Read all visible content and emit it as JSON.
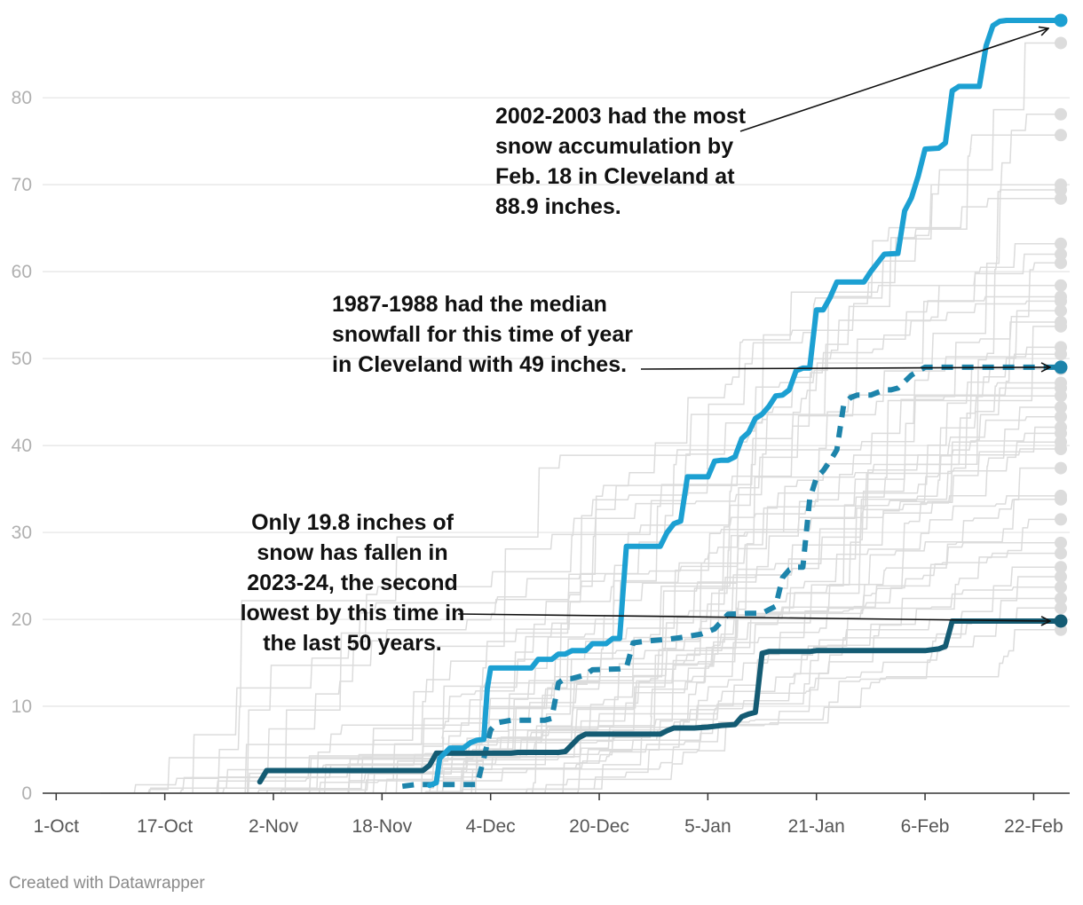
{
  "chart_data": {
    "type": "line",
    "title": "",
    "xlabel": "",
    "ylabel": "",
    "x_unit": "days since 1-Oct",
    "xlim": [
      -2,
      148
    ],
    "ylim": [
      0,
      89
    ],
    "y_ticks": [
      0,
      10,
      20,
      30,
      40,
      50,
      60,
      70,
      80
    ],
    "x_ticks": [
      {
        "label": "1-Oct",
        "day": 0
      },
      {
        "label": "17-Oct",
        "day": 16
      },
      {
        "label": "2-Nov",
        "day": 32
      },
      {
        "label": "18-Nov",
        "day": 48
      },
      {
        "label": "4-Dec",
        "day": 64
      },
      {
        "label": "20-Dec",
        "day": 80
      },
      {
        "label": "5-Jan",
        "day": 96
      },
      {
        "label": "21-Jan",
        "day": 112
      },
      {
        "label": "6-Feb",
        "day": 128
      },
      {
        "label": "22-Feb",
        "day": 144
      }
    ],
    "end_day": 148,
    "series": [
      {
        "name": "2002-2003",
        "style": "solid",
        "color": "#1ca0d2",
        "end_value": 88.9,
        "points": [
          [
            55,
            0.9
          ],
          [
            56,
            1.2
          ],
          [
            56.5,
            4
          ],
          [
            58,
            5.2
          ],
          [
            60,
            5.2
          ],
          [
            61,
            5.8
          ],
          [
            62,
            6.1
          ],
          [
            63,
            6.2
          ],
          [
            63.5,
            12
          ],
          [
            64,
            14.4
          ],
          [
            70,
            14.4
          ],
          [
            71,
            15.4
          ],
          [
            73,
            15.4
          ],
          [
            74,
            16
          ],
          [
            75,
            16
          ],
          [
            76,
            16.4
          ],
          [
            78,
            16.4
          ],
          [
            79,
            17.2
          ],
          [
            81,
            17.2
          ],
          [
            82,
            17.8
          ],
          [
            83,
            17.8
          ],
          [
            84,
            28.4
          ],
          [
            89,
            28.4
          ],
          [
            90,
            30
          ],
          [
            91,
            31
          ],
          [
            92,
            31.3
          ],
          [
            93,
            36.4
          ],
          [
            96,
            36.4
          ],
          [
            97,
            38.2
          ],
          [
            98,
            38.3
          ],
          [
            99,
            38.3
          ],
          [
            100,
            38.7
          ],
          [
            101,
            40.8
          ],
          [
            102,
            41.5
          ],
          [
            103,
            43.1
          ],
          [
            104,
            43.6
          ],
          [
            105,
            44.5
          ],
          [
            106,
            45.7
          ],
          [
            107,
            45.8
          ],
          [
            108,
            46.4
          ],
          [
            109,
            48.6
          ],
          [
            110,
            48.9
          ],
          [
            111,
            48.9
          ],
          [
            112,
            55.6
          ],
          [
            113,
            55.6
          ],
          [
            114,
            57
          ],
          [
            115,
            58.8
          ],
          [
            119,
            58.8
          ],
          [
            120,
            60
          ],
          [
            121,
            61
          ],
          [
            122,
            62
          ],
          [
            124,
            62.1
          ],
          [
            125,
            67
          ],
          [
            126,
            68.5
          ],
          [
            127,
            71
          ],
          [
            128,
            74.1
          ],
          [
            130,
            74.2
          ],
          [
            131,
            74.8
          ],
          [
            132,
            80.8
          ],
          [
            133,
            81.3
          ],
          [
            136,
            81.3
          ],
          [
            137,
            86
          ],
          [
            138,
            88.3
          ],
          [
            139,
            88.8
          ],
          [
            140,
            88.9
          ],
          [
            148,
            88.9
          ]
        ]
      },
      {
        "name": "1987-1988",
        "style": "dashed",
        "color": "#1d84ab",
        "end_value": 49,
        "points": [
          [
            51,
            0.8
          ],
          [
            53,
            1
          ],
          [
            59,
            1
          ],
          [
            60,
            1
          ],
          [
            61,
            1
          ],
          [
            62,
            1
          ],
          [
            63,
            4
          ],
          [
            64,
            7.3
          ],
          [
            65,
            8.1
          ],
          [
            67,
            8.4
          ],
          [
            72,
            8.4
          ],
          [
            73,
            8.6
          ],
          [
            74,
            12.7
          ],
          [
            75,
            13.2
          ],
          [
            76,
            13.2
          ],
          [
            77,
            13.4
          ],
          [
            78,
            13.6
          ],
          [
            79,
            14.2
          ],
          [
            83,
            14.3
          ],
          [
            84,
            14.4
          ],
          [
            85,
            17.3
          ],
          [
            87,
            17.5
          ],
          [
            90,
            17.7
          ],
          [
            92,
            17.9
          ],
          [
            95,
            18.3
          ],
          [
            96,
            18.6
          ],
          [
            97,
            18.9
          ],
          [
            99,
            20.6
          ],
          [
            102,
            20.7
          ],
          [
            104,
            20.7
          ],
          [
            106,
            21.5
          ],
          [
            107,
            24.8
          ],
          [
            108,
            25.7
          ],
          [
            109,
            26
          ],
          [
            110,
            26
          ],
          [
            111,
            33.8
          ],
          [
            112,
            36.3
          ],
          [
            113,
            37.1
          ],
          [
            114,
            38.2
          ],
          [
            115,
            39.5
          ],
          [
            116,
            44.6
          ],
          [
            117,
            45.5
          ],
          [
            118,
            45.8
          ],
          [
            120,
            45.8
          ],
          [
            121,
            46.1
          ],
          [
            122,
            46.4
          ],
          [
            123,
            46.4
          ],
          [
            124,
            46.6
          ],
          [
            126,
            48.1
          ],
          [
            128,
            49
          ],
          [
            148,
            49
          ]
        ]
      },
      {
        "name": "2023-2024",
        "style": "solid",
        "color": "#145b73",
        "end_value": 19.8,
        "points": [
          [
            30,
            1.3
          ],
          [
            31,
            2.6
          ],
          [
            54,
            2.6
          ],
          [
            55,
            3.2
          ],
          [
            56,
            4.6
          ],
          [
            67,
            4.6
          ],
          [
            68,
            4.7
          ],
          [
            74,
            4.7
          ],
          [
            75,
            4.8
          ],
          [
            77,
            6.4
          ],
          [
            78,
            6.8
          ],
          [
            89,
            6.8
          ],
          [
            90,
            7.2
          ],
          [
            91,
            7.5
          ],
          [
            94,
            7.5
          ],
          [
            96,
            7.6
          ],
          [
            98,
            7.8
          ],
          [
            100,
            7.9
          ],
          [
            101,
            8.8
          ],
          [
            102,
            9.1
          ],
          [
            103,
            9.3
          ],
          [
            104,
            16.1
          ],
          [
            105,
            16.3
          ],
          [
            111,
            16.3
          ],
          [
            112,
            16.4
          ],
          [
            128,
            16.4
          ],
          [
            129,
            16.5
          ],
          [
            130,
            16.6
          ],
          [
            131,
            16.9
          ],
          [
            132,
            19.8
          ],
          [
            148,
            19.8
          ]
        ]
      }
    ],
    "background_endpoints": [
      86.3,
      78.1,
      75.7,
      70,
      69.4,
      68.4,
      63.2,
      62,
      61,
      58.4,
      57.1,
      56.6,
      55.5,
      54.2,
      53.7,
      51.3,
      50.5,
      48.8,
      47.2,
      46.6,
      45.7,
      44.4,
      43.3,
      42.1,
      41.4,
      40.4,
      39.6,
      37.4,
      34.2,
      33.8,
      31.5,
      28.8,
      27.6,
      26,
      24.9,
      23.7,
      22.4,
      21.3,
      19.9,
      18.8
    ],
    "annotations": [
      {
        "id": "max",
        "text": "2002-2003 had the most snow accumulation by Feb. 18 in Cleveland at 88.9 inches.",
        "target_series": "2002-2003"
      },
      {
        "id": "median",
        "text": "1987-1988 had the median snowfall for this time of year in Cleveland with 49 inches.",
        "target_series": "1987-1988"
      },
      {
        "id": "current",
        "text": "Only 19.8 inches of snow has fallen in 2023-24, the second lowest by this time in the last 50 years.",
        "target_series": "2023-2024"
      }
    ]
  },
  "footer": {
    "credit": "Created with Datawrapper"
  }
}
